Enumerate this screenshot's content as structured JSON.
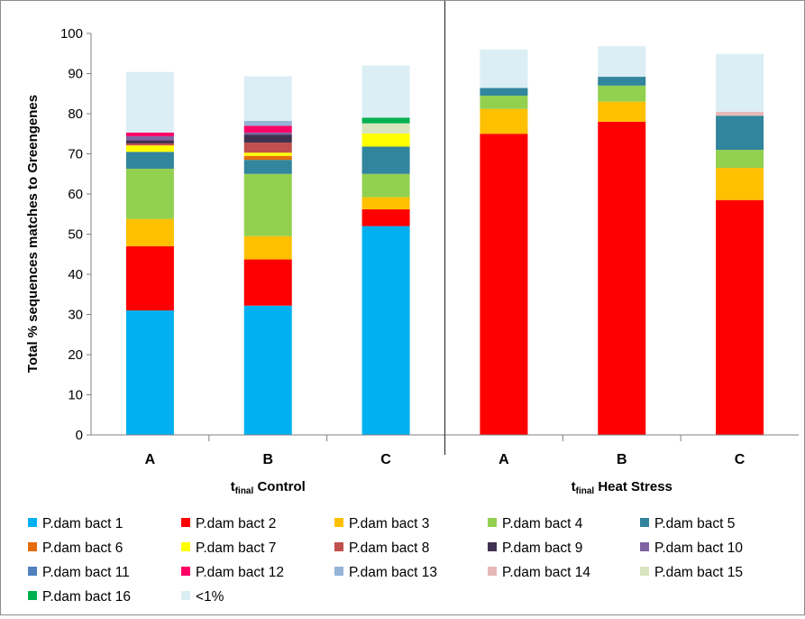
{
  "chart_data": {
    "type": "bar",
    "stacked": true,
    "title": "",
    "ylabel": "Total % sequences matches to Greengenes",
    "ylim": [
      0,
      100
    ],
    "yticks": [
      0,
      10,
      20,
      30,
      40,
      50,
      60,
      70,
      80,
      90,
      100
    ],
    "grid": false,
    "legend_position": "bottom",
    "groups": [
      {
        "main": "t",
        "sub": "final",
        "rest": " Control",
        "categories": [
          "A",
          "B",
          "C"
        ]
      },
      {
        "main": "t",
        "sub": "final",
        "rest": " Heat Stress",
        "categories": [
          "A",
          "B",
          "C"
        ]
      }
    ],
    "categories": [
      "A",
      "B",
      "C",
      "A",
      "B",
      "C"
    ],
    "series": [
      {
        "name": "P.dam bact 1",
        "color": "#00b0f0",
        "values": [
          31,
          32.2,
          52,
          0,
          0,
          0
        ]
      },
      {
        "name": "P.dam bact 2",
        "color": "#ff0000",
        "values": [
          16,
          11.5,
          4.2,
          75,
          78,
          58.5
        ]
      },
      {
        "name": "P.dam bact 3",
        "color": "#ffc000",
        "values": [
          6.8,
          5.8,
          3,
          6.2,
          5,
          8
        ]
      },
      {
        "name": "P.dam bact 4",
        "color": "#92d050",
        "values": [
          12.5,
          15.5,
          5.8,
          3.3,
          4,
          4.5
        ]
      },
      {
        "name": "P.dam bact 5",
        "color": "#31859c",
        "values": [
          4.2,
          3.5,
          6.8,
          1.9,
          2.2,
          8.5
        ]
      },
      {
        "name": "P.dam bact 6",
        "color": "#e46c0a",
        "values": [
          0,
          1,
          0,
          0,
          0,
          0
        ]
      },
      {
        "name": "P.dam bact 7",
        "color": "#ffff00",
        "values": [
          1.6,
          0.8,
          3.3,
          0,
          0,
          0
        ]
      },
      {
        "name": "P.dam bact 8",
        "color": "#c0504d",
        "values": [
          0.5,
          2.5,
          0,
          0,
          0,
          0
        ]
      },
      {
        "name": "P.dam bact 9",
        "color": "#403151",
        "values": [
          0.8,
          2,
          0,
          0,
          0,
          0
        ]
      },
      {
        "name": "P.dam bact 10",
        "color": "#8064a2",
        "values": [
          1,
          0.5,
          0,
          0,
          0,
          0
        ]
      },
      {
        "name": "P.dam bact 11",
        "color": "#4f81bd",
        "values": [
          0,
          0,
          0,
          0,
          0,
          0
        ]
      },
      {
        "name": "P.dam bact 12",
        "color": "#ff0066",
        "values": [
          0.9,
          1.7,
          0,
          0,
          0,
          0
        ]
      },
      {
        "name": "P.dam bact 13",
        "color": "#95b3d7",
        "values": [
          0,
          1.2,
          0,
          0,
          0,
          0
        ]
      },
      {
        "name": "P.dam bact 14",
        "color": "#e6b9b8",
        "values": [
          0,
          0,
          0,
          0,
          0,
          1
        ]
      },
      {
        "name": "P.dam bact 15",
        "color": "#d7e4bd",
        "values": [
          0,
          0,
          2.5,
          0,
          0,
          0
        ]
      },
      {
        "name": "P.dam bact 16",
        "color": "#00b050",
        "values": [
          0,
          0,
          1.4,
          0,
          0,
          0
        ]
      },
      {
        "name": "<1%",
        "color": "#dbeef4",
        "values": [
          15.1,
          11.1,
          13,
          9.6,
          7.6,
          14.4
        ]
      }
    ]
  }
}
